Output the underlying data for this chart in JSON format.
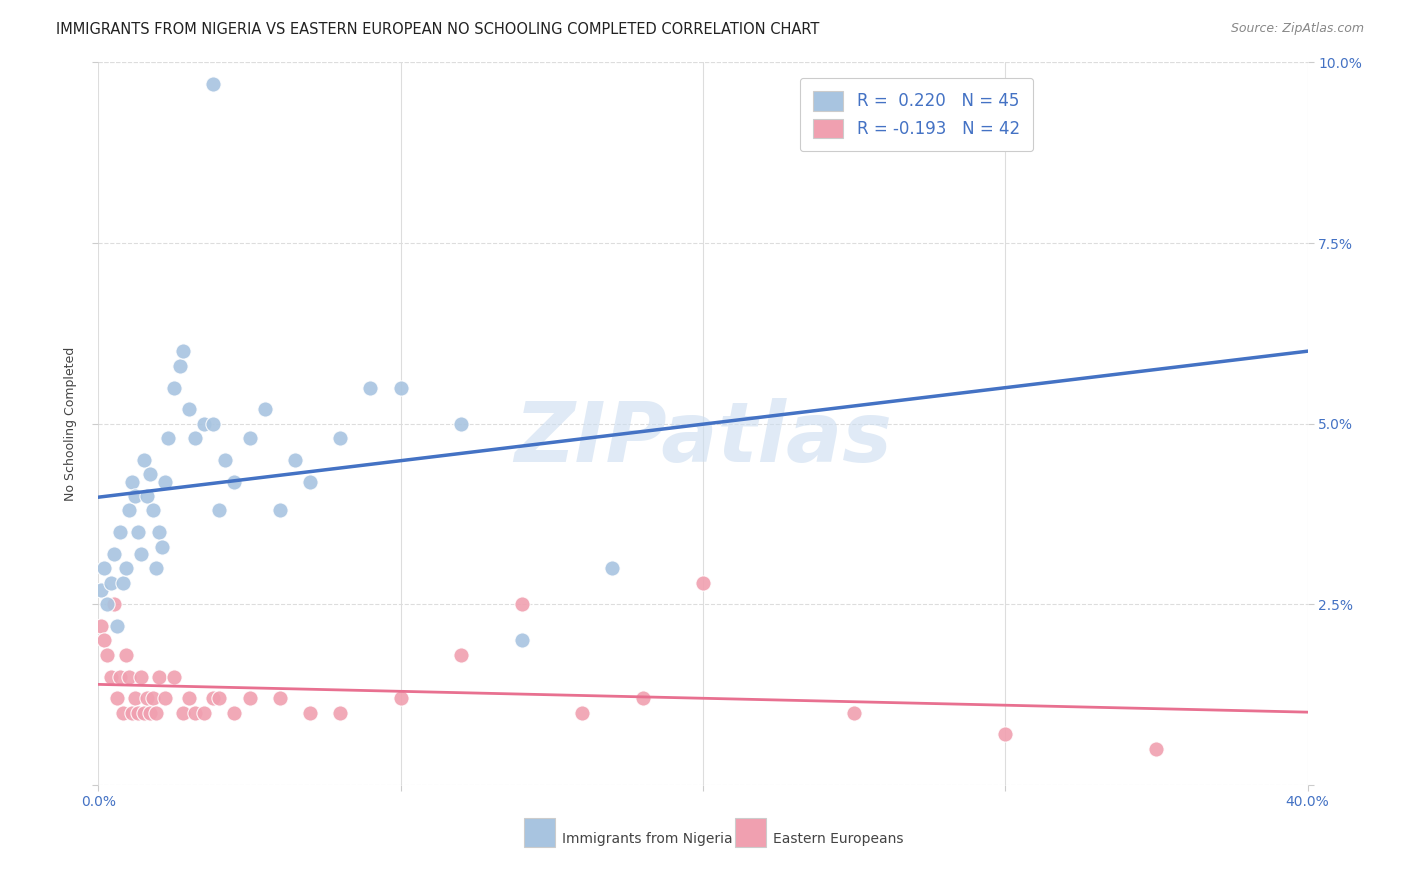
{
  "title": "IMMIGRANTS FROM NIGERIA VS EASTERN EUROPEAN NO SCHOOLING COMPLETED CORRELATION CHART",
  "source": "Source: ZipAtlas.com",
  "ylabel": "No Schooling Completed",
  "xlim": [
    0.0,
    0.4
  ],
  "ylim": [
    0.0,
    0.1
  ],
  "xticks": [
    0.0,
    0.1,
    0.2,
    0.3,
    0.4
  ],
  "yticks": [
    0.0,
    0.025,
    0.05,
    0.075,
    0.1
  ],
  "nigeria_color": "#a8c4e0",
  "eastern_color": "#f0a0b0",
  "nigeria_line_color": "#4472c4",
  "eastern_line_color": "#e87090",
  "dash_line_color": "#b0c8e0",
  "grid_color": "#dddddd",
  "title_color": "#222222",
  "source_color": "#888888",
  "tick_color": "#4472c4",
  "ylabel_color": "#444444",
  "watermark": "ZIPatlas",
  "watermark_color": "#ccddf0",
  "legend_label_1": "R =  0.220   N = 45",
  "legend_label_2": "R = -0.193   N = 42",
  "bottom_legend_1": "Immigrants from Nigeria",
  "bottom_legend_2": "Eastern Europeans",
  "nigeria_R": 0.22,
  "nigeria_N": 45,
  "eastern_R": -0.193,
  "eastern_N": 42,
  "nigeria_scatter_x": [
    0.001,
    0.002,
    0.003,
    0.004,
    0.005,
    0.006,
    0.007,
    0.008,
    0.009,
    0.01,
    0.011,
    0.012,
    0.013,
    0.014,
    0.015,
    0.016,
    0.017,
    0.018,
    0.019,
    0.02,
    0.021,
    0.022,
    0.023,
    0.025,
    0.027,
    0.028,
    0.03,
    0.032,
    0.035,
    0.038,
    0.04,
    0.042,
    0.045,
    0.05,
    0.055,
    0.06,
    0.065,
    0.07,
    0.08,
    0.09,
    0.1,
    0.12,
    0.14,
    0.17,
    0.038
  ],
  "nigeria_scatter_y": [
    0.027,
    0.03,
    0.025,
    0.028,
    0.032,
    0.022,
    0.035,
    0.028,
    0.03,
    0.038,
    0.042,
    0.04,
    0.035,
    0.032,
    0.045,
    0.04,
    0.043,
    0.038,
    0.03,
    0.035,
    0.033,
    0.042,
    0.048,
    0.055,
    0.058,
    0.06,
    0.052,
    0.048,
    0.05,
    0.05,
    0.038,
    0.045,
    0.042,
    0.048,
    0.052,
    0.038,
    0.045,
    0.042,
    0.048,
    0.055,
    0.055,
    0.05,
    0.02,
    0.03,
    0.097
  ],
  "eastern_scatter_x": [
    0.001,
    0.002,
    0.003,
    0.004,
    0.005,
    0.006,
    0.007,
    0.008,
    0.009,
    0.01,
    0.011,
    0.012,
    0.013,
    0.014,
    0.015,
    0.016,
    0.017,
    0.018,
    0.019,
    0.02,
    0.022,
    0.025,
    0.028,
    0.03,
    0.032,
    0.035,
    0.038,
    0.04,
    0.045,
    0.05,
    0.06,
    0.07,
    0.08,
    0.1,
    0.12,
    0.14,
    0.16,
    0.18,
    0.2,
    0.25,
    0.3,
    0.35
  ],
  "eastern_scatter_y": [
    0.022,
    0.02,
    0.018,
    0.015,
    0.025,
    0.012,
    0.015,
    0.01,
    0.018,
    0.015,
    0.01,
    0.012,
    0.01,
    0.015,
    0.01,
    0.012,
    0.01,
    0.012,
    0.01,
    0.015,
    0.012,
    0.015,
    0.01,
    0.012,
    0.01,
    0.01,
    0.012,
    0.012,
    0.01,
    0.012,
    0.012,
    0.01,
    0.01,
    0.012,
    0.018,
    0.025,
    0.01,
    0.012,
    0.028,
    0.01,
    0.007,
    0.005
  ]
}
